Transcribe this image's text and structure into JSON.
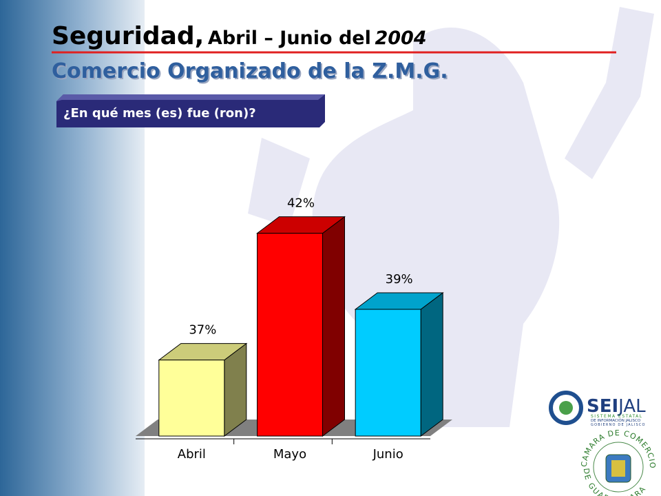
{
  "header": {
    "title_parts": [
      "Seguridad,",
      "Abril – Junio del",
      "2004"
    ],
    "subtitle": "Comercio Organizado de la Z.M.G.",
    "question": "¿En qué mes (es) fue (ron)?"
  },
  "chart_data": {
    "type": "bar",
    "categories": [
      "Abril",
      "Mayo",
      "Junio"
    ],
    "values": [
      37,
      42,
      39
    ],
    "value_labels": [
      "37%",
      "42%",
      "39%"
    ],
    "colors": [
      "#ffff99",
      "#ff0000",
      "#00ccff"
    ],
    "ylim": [
      34,
      44
    ]
  },
  "logos": {
    "seijal": {
      "name_a": "SEI",
      "name_b": "JAL",
      "lines": [
        "SISTEMA ESTATAL",
        "DE INFORMACIÓN JALISCO",
        "GOBIERNO DE JALISCO"
      ]
    },
    "camara": {
      "top": "CAMARA DE COMERCIO",
      "bottom": "DE GUADALAJARA"
    }
  }
}
